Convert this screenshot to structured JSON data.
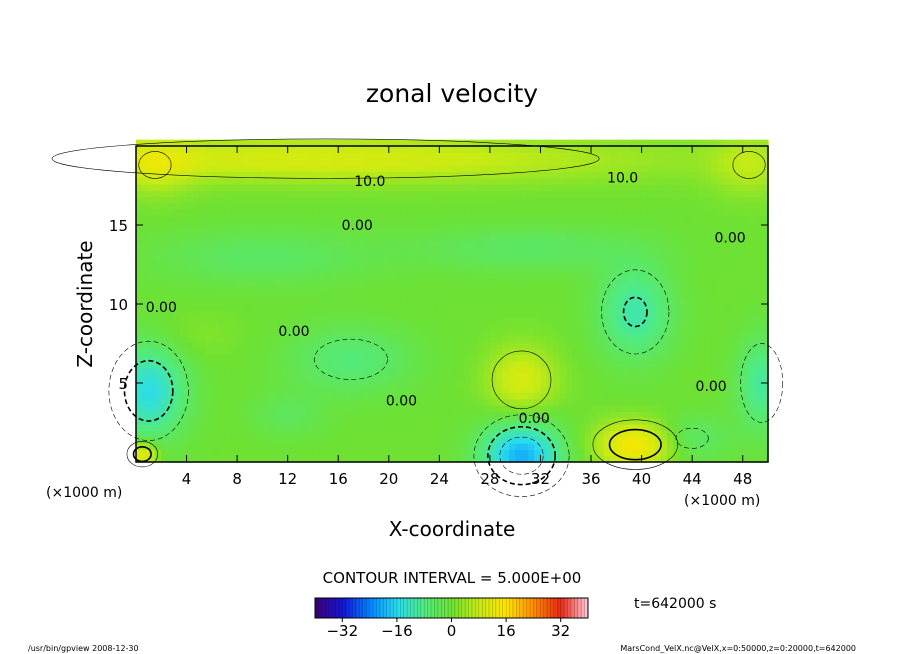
{
  "chart_data": {
    "type": "heatmap",
    "title": "zonal velocity",
    "xlabel": "X-coordinate",
    "ylabel": "Z-coordinate",
    "x_unit_left": "(×1000 m)",
    "x_unit_right": "(×1000 m)",
    "xlim": [
      0,
      50
    ],
    "ylim": [
      0,
      20
    ],
    "xticks": [
      4,
      8,
      12,
      16,
      20,
      24,
      28,
      32,
      36,
      40,
      44,
      48
    ],
    "yticks": [
      5,
      10,
      15
    ],
    "contour_interval_text": "CONTOUR INTERVAL = 5.000E+00",
    "contour_labels": [
      {
        "text": "10.0",
        "x": 18.5,
        "z": 17.8
      },
      {
        "text": "10.0",
        "x": 38.5,
        "z": 18.0
      },
      {
        "text": "0.00",
        "x": 17.5,
        "z": 15.0
      },
      {
        "text": "0.00",
        "x": 47.0,
        "z": 14.2
      },
      {
        "text": "0.00",
        "x": 2.0,
        "z": 9.8
      },
      {
        "text": "0.00",
        "x": 12.5,
        "z": 8.3
      },
      {
        "text": "0.00",
        "x": 21.0,
        "z": 3.9
      },
      {
        "text": "0.00",
        "x": 31.5,
        "z": 2.8
      },
      {
        "text": "0.00",
        "x": 45.5,
        "z": 4.8
      }
    ],
    "field_blobs": [
      {
        "x": 1.0,
        "z": 4.5,
        "rx": 3.0,
        "rz": 3.0,
        "value": -15
      },
      {
        "x": 17.0,
        "z": 6.5,
        "rx": 5.0,
        "rz": 2.2,
        "value": -7
      },
      {
        "x": 30.5,
        "z": 0.4,
        "rx": 3.2,
        "rz": 2.2,
        "value": -20
      },
      {
        "x": 39.5,
        "z": 9.5,
        "rx": 3.0,
        "rz": 3.0,
        "value": -11
      },
      {
        "x": 44.0,
        "z": 1.5,
        "rx": 3.0,
        "rz": 1.5,
        "value": -6
      },
      {
        "x": 49.5,
        "z": 5.0,
        "rx": 2.0,
        "rz": 3.0,
        "value": -10
      },
      {
        "x": 12.0,
        "z": 3.0,
        "rx": 3.0,
        "rz": 1.5,
        "value": -4
      },
      {
        "x": 10.0,
        "z": 13.0,
        "rx": 9.0,
        "rz": 1.8,
        "value": -5
      },
      {
        "x": 31.0,
        "z": 13.5,
        "rx": 9.0,
        "rz": 1.5,
        "value": -5
      },
      {
        "x": 30.5,
        "z": 5.2,
        "rx": 2.8,
        "rz": 2.2,
        "value": 10
      },
      {
        "x": 39.5,
        "z": 1.1,
        "rx": 3.2,
        "rz": 1.5,
        "value": 15
      },
      {
        "x": 4.5,
        "z": 8.0,
        "rx": 3.5,
        "rz": 1.5,
        "value": 2
      },
      {
        "x": 15.0,
        "z": 19.2,
        "rx": 26.0,
        "rz": 1.5,
        "value": 10
      },
      {
        "x": 1.5,
        "z": 18.8,
        "rx": 3.0,
        "rz": 2.0,
        "value": 6
      },
      {
        "x": 48.5,
        "z": 18.8,
        "rx": 3.0,
        "rz": 2.0,
        "value": 6
      },
      {
        "x": 0.5,
        "z": 0.5,
        "rx": 1.2,
        "rz": 0.8,
        "value": 14
      }
    ],
    "colorbar": {
      "min": -40,
      "max": 40,
      "ticks": [
        -32,
        -16,
        0,
        16,
        32
      ],
      "tick_labels": [
        "−32",
        "−16",
        "0",
        "16",
        "32"
      ]
    },
    "time_label": "t=642000 s"
  },
  "footer": {
    "left": "/usr/bin/gpview   2008-12-30",
    "right": "MarsCond_VelX.nc@VelX,x=0:50000,z=0:20000,t=642000"
  }
}
